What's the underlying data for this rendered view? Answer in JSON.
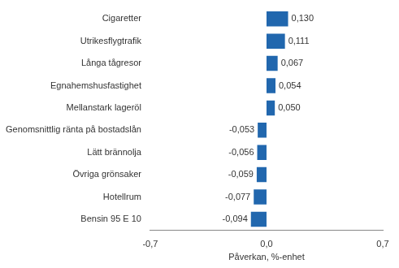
{
  "chart_data": {
    "type": "bar",
    "orientation": "horizontal",
    "x_label": "Påverkan, %-enhet",
    "categories": [
      "Cigaretter",
      "Utrikesflygtrafik",
      "Långa tågresor",
      "Egnahemshusfastighet",
      "Mellanstark lageröl",
      "Genomsnittlig ränta på bostadslån",
      "Lätt brännolja",
      "Övriga grönsaker",
      "Hotellrum",
      "Bensin 95 E 10"
    ],
    "values": [
      0.13,
      0.111,
      0.067,
      0.054,
      0.05,
      -0.053,
      -0.056,
      -0.059,
      -0.077,
      -0.094
    ],
    "value_labels": [
      "0,130",
      "0,111",
      "0,067",
      "0,054",
      "0,050",
      "-0,053",
      "-0,056",
      "-0,059",
      "-0,077",
      "-0,094"
    ],
    "data_labels": true,
    "color": "#2167ae",
    "xlim": [
      -0.7,
      0.7
    ],
    "xticks": [
      {
        "value": -0.7,
        "label": "-0,7"
      },
      {
        "value": 0,
        "label": "0,0"
      },
      {
        "value": 0.7,
        "label": "0,7"
      }
    ],
    "grid": false
  }
}
